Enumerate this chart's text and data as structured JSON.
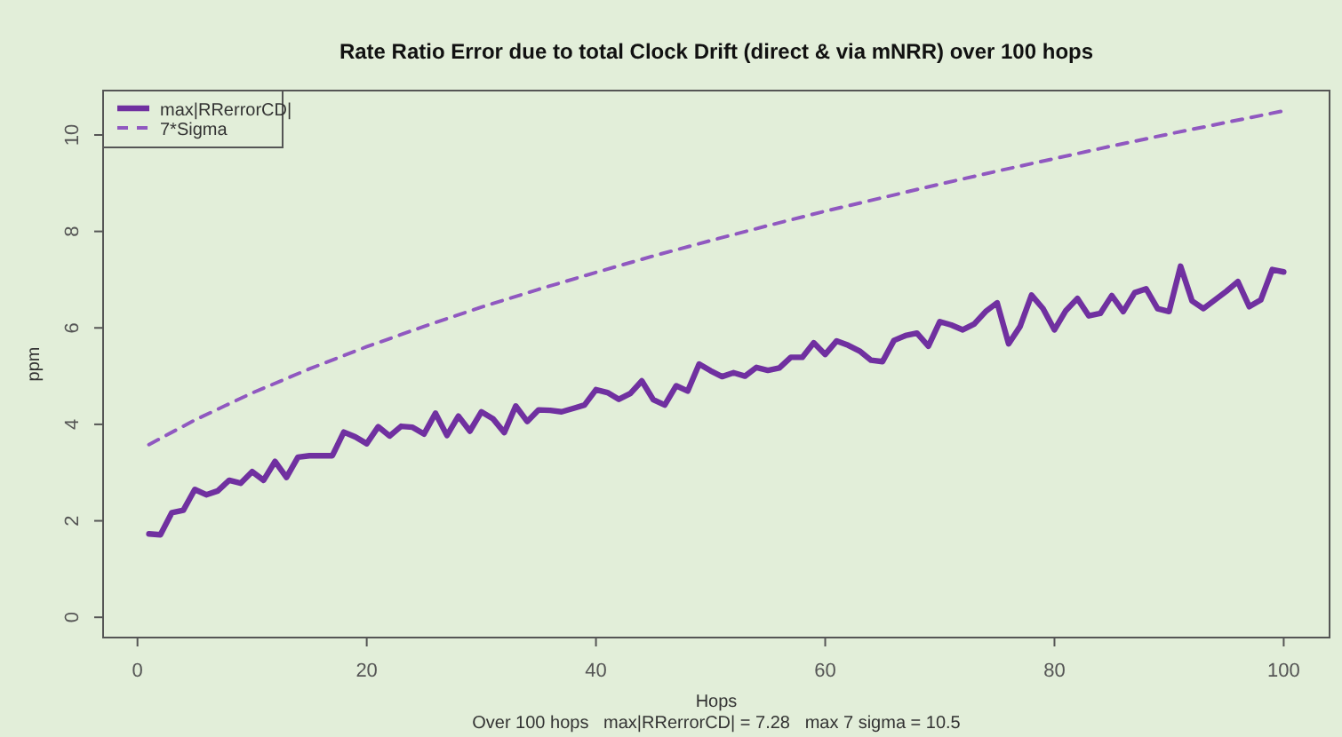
{
  "chart_data": {
    "type": "line",
    "title": "Rate Ratio Error due to total Clock Drift (direct & via mNRR) over 100 hops",
    "xlabel": "Hops",
    "ylabel": "ppm",
    "annotations": [
      "Over 100 hops   max|RRerrorCD| = 7.28   max 7 sigma = 10.5"
    ],
    "xlim": [
      -3,
      104
    ],
    "ylim": [
      -0.42,
      10.92
    ],
    "xticks": [
      0,
      20,
      40,
      60,
      80,
      100
    ],
    "yticks": [
      0,
      2,
      4,
      6,
      8,
      10
    ],
    "grid": false,
    "legend": "top left",
    "series": [
      {
        "name": "max|RRerrorCD|",
        "color": "#7030a0",
        "line_style": "solid",
        "x": [
          1,
          2,
          3,
          4,
          5,
          6,
          7,
          8,
          9,
          10,
          11,
          12,
          13,
          14,
          15,
          16,
          17,
          18,
          19,
          20,
          21,
          22,
          23,
          24,
          25,
          26,
          27,
          28,
          29,
          30,
          31,
          32,
          33,
          34,
          35,
          36,
          37,
          38,
          39,
          40,
          41,
          42,
          43,
          44,
          45,
          46,
          47,
          48,
          49,
          50,
          51,
          52,
          53,
          54,
          55,
          56,
          57,
          58,
          59,
          60,
          61,
          62,
          63,
          64,
          65,
          66,
          67,
          68,
          69,
          70,
          71,
          72,
          73,
          74,
          75,
          76,
          77,
          78,
          79,
          80,
          81,
          82,
          83,
          84,
          85,
          86,
          87,
          88,
          89,
          90,
          91,
          92,
          93,
          94,
          95,
          96,
          97,
          98,
          99,
          100
        ],
        "values": [
          1.73,
          1.71,
          2.17,
          2.22,
          2.65,
          2.54,
          2.62,
          2.84,
          2.78,
          3.02,
          2.84,
          3.23,
          2.9,
          3.32,
          3.35,
          3.35,
          3.35,
          3.84,
          3.74,
          3.6,
          3.95,
          3.76,
          3.96,
          3.94,
          3.8,
          4.23,
          3.77,
          4.17,
          3.86,
          4.26,
          4.12,
          3.83,
          4.38,
          4.06,
          4.3,
          4.29,
          4.26,
          4.33,
          4.4,
          4.72,
          4.66,
          4.52,
          4.64,
          4.9,
          4.51,
          4.4,
          4.8,
          4.69,
          5.25,
          5.11,
          4.99,
          5.07,
          5,
          5.18,
          5.12,
          5.17,
          5.39,
          5.39,
          5.69,
          5.45,
          5.73,
          5.64,
          5.52,
          5.33,
          5.3,
          5.74,
          5.84,
          5.89,
          5.62,
          6.13,
          6.06,
          5.96,
          6.08,
          6.34,
          6.52,
          5.67,
          6.03,
          6.68,
          6.4,
          5.96,
          6.36,
          6.61,
          6.25,
          6.3,
          6.67,
          6.34,
          6.73,
          6.81,
          6.4,
          6.34,
          7.28,
          6.56,
          6.4,
          6.58,
          6.76,
          6.96,
          6.44,
          6.58,
          7.21,
          7.16
        ]
      },
      {
        "name": "7*Sigma",
        "color": "#9058c0",
        "line_style": "dashed",
        "x": [
          1,
          5,
          10,
          15,
          20,
          25,
          30,
          35,
          40,
          45,
          50,
          55,
          60,
          65,
          70,
          75,
          80,
          85,
          90,
          95,
          100
        ],
        "values": [
          3.58,
          4.09,
          4.65,
          5.15,
          5.61,
          6.03,
          6.43,
          6.8,
          7.15,
          7.49,
          7.81,
          8.12,
          8.42,
          8.7,
          8.98,
          9.25,
          9.51,
          9.77,
          10.02,
          10.26,
          10.5
        ]
      }
    ]
  }
}
